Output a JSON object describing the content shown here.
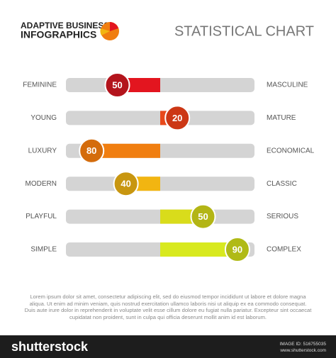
{
  "header": {
    "brand_line1": "ADAPTIVE BUSINESS",
    "brand_line2": "INFOGRAPHICS",
    "title": "STATISTICAL CHART"
  },
  "chart_data": {
    "type": "bipolar-bar",
    "xlim": [
      0,
      100
    ],
    "rows": [
      {
        "left": "FEMININE",
        "right": "MASCULINE",
        "value": 50,
        "side": "left",
        "color": "#e3151f",
        "marker_color": "#b3141c"
      },
      {
        "left": "YOUNG",
        "right": "MATURE",
        "value": 20,
        "side": "right",
        "color": "#e8481a",
        "marker_color": "#cc3715"
      },
      {
        "left": "LUXURY",
        "right": "ECONOMICAL",
        "value": 80,
        "side": "left",
        "color": "#f07e10",
        "marker_color": "#d46c0c"
      },
      {
        "left": "MODERN",
        "right": "CLASSIC",
        "value": 40,
        "side": "left",
        "color": "#f2b511",
        "marker_color": "#c89610"
      },
      {
        "left": "PLAYFUL",
        "right": "SERIOUS",
        "value": 50,
        "side": "right",
        "color": "#d9dc1b",
        "marker_color": "#b3b515"
      },
      {
        "left": "SIMPLE",
        "right": "COMPLEX",
        "value": 90,
        "side": "right",
        "color": "#d8e91f",
        "marker_color": "#b0ba16"
      }
    ]
  },
  "body_text": "Lorem ipsum dolor sit amet, consectetur adipiscing elit, sed do eiusmod tempor incididunt ut labore et dolore magna aliqua. Ut enim ad minim veniam, quis nostrud exercitation ullamco laboris nisi ut aliquip ex ea commodo consequat. Duis aute irure dolor in reprehenderit in voluptate velit esse cillum dolore eu fugiat nulla pariatur. Excepteur sint occaecat cupidatat non proident, sunt in culpa qui officia deserunt mollit anim id est laborum.",
  "footer": {
    "brand": "shutterstock",
    "image_id": "IMAGE ID: 516755035",
    "site": "www.shutterstock.com"
  }
}
